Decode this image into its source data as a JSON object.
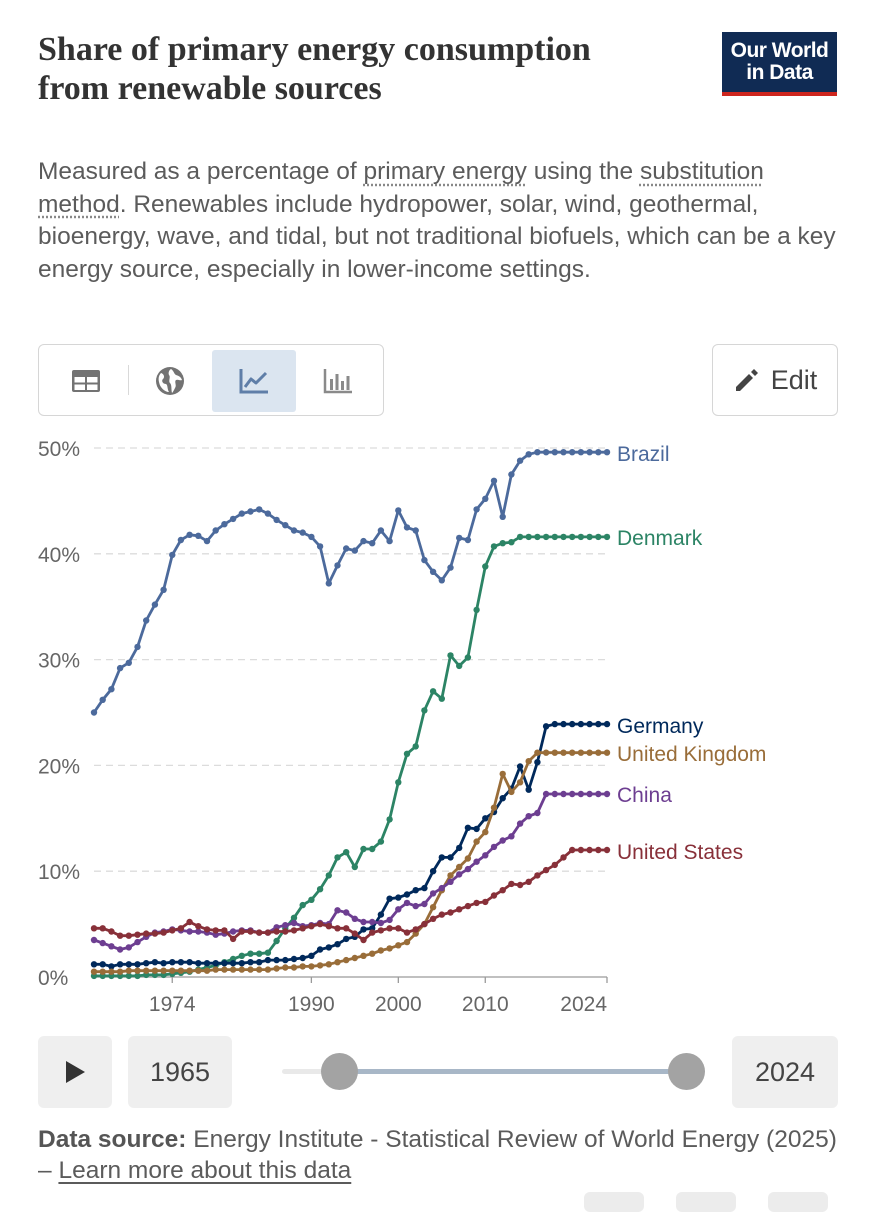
{
  "header": {
    "title": "Share of primary energy consumption from renewable sources",
    "logo_line1": "Our World",
    "logo_line2": "in Data",
    "subtitle_pre": "Measured as a percentage of ",
    "subtitle_link1": "primary energy",
    "subtitle_mid": " using the ",
    "subtitle_link2": "substitution method",
    "subtitle_post": ". Renewables include hydropower, solar, wind, geothermal, bioenergy, wave, and tidal, but not traditional biofuels, which can be a key energy source, especially in lower-income settings."
  },
  "toolbar": {
    "tabs": [
      "table",
      "map",
      "line chart",
      "bar chart"
    ],
    "active_tab": "line chart",
    "edit_label": "Edit"
  },
  "timeline": {
    "start_year": "1965",
    "end_year": "2024"
  },
  "footer": {
    "source_label": "Data source:",
    "source_text": " Energy Institute - Statistical Review of World Energy (2025) – ",
    "learn_more": "Learn more about this data"
  },
  "colors": {
    "Brazil": "#4c6a9c",
    "Denmark": "#2c8465",
    "Germany": "#00295b",
    "United Kingdom": "#996d39",
    "China": "#6d3e91",
    "United States": "#883039",
    "grid": "#dcdcdc",
    "axis": "#666666"
  },
  "chart_data": {
    "type": "line",
    "title": "Share of primary energy consumption from renewable sources",
    "xlim": [
      1965,
      2024
    ],
    "ylim": [
      0,
      50
    ],
    "yticks": [
      0,
      10,
      20,
      30,
      40,
      50
    ],
    "ytick_labels": [
      "0%",
      "10%",
      "20%",
      "30%",
      "40%",
      "50%"
    ],
    "xticks": [
      1974,
      1990,
      2000,
      2010,
      2024
    ],
    "xtick_labels": [
      "1974",
      "1990",
      "2000",
      "2010",
      "2024"
    ],
    "x": [
      1965,
      1966,
      1967,
      1968,
      1969,
      1970,
      1971,
      1972,
      1973,
      1974,
      1975,
      1976,
      1977,
      1978,
      1979,
      1980,
      1981,
      1982,
      1983,
      1984,
      1985,
      1986,
      1987,
      1988,
      1989,
      1990,
      1991,
      1992,
      1993,
      1994,
      1995,
      1996,
      1997,
      1998,
      1999,
      2000,
      2001,
      2002,
      2003,
      2004,
      2005,
      2006,
      2007,
      2008,
      2009,
      2010,
      2011,
      2012,
      2013,
      2014,
      2015,
      2016,
      2017,
      2018,
      2019,
      2020,
      2021,
      2022,
      2023,
      2024
    ],
    "series": [
      {
        "name": "Brazil",
        "values": [
          25.0,
          26.2,
          27.2,
          29.2,
          29.7,
          31.2,
          33.7,
          35.2,
          36.6,
          39.9,
          41.3,
          41.8,
          41.7,
          41.2,
          42.2,
          42.8,
          43.3,
          43.8,
          44.0,
          44.2,
          43.8,
          43.2,
          42.7,
          42.2,
          42.0,
          41.6,
          40.7,
          37.2,
          38.9,
          40.5,
          40.3,
          41.2,
          41.0,
          42.2,
          41.2,
          44.1,
          42.5,
          42.2,
          39.4,
          38.3,
          37.5,
          38.7,
          41.5,
          41.3,
          44.2,
          45.2,
          46.9,
          43.5,
          47.5,
          48.8,
          49.4,
          49.6,
          49.6,
          49.6,
          49.6,
          49.6,
          49.6,
          49.6,
          49.6,
          49.6
        ]
      },
      {
        "name": "Denmark",
        "values": [
          0.1,
          0.1,
          0.1,
          0.1,
          0.1,
          0.1,
          0.2,
          0.2,
          0.2,
          0.3,
          0.4,
          0.5,
          0.7,
          0.9,
          1.1,
          1.4,
          1.7,
          2.0,
          2.2,
          2.2,
          2.3,
          3.4,
          4.6,
          5.6,
          6.8,
          7.3,
          8.3,
          9.6,
          11.3,
          11.8,
          10.4,
          12.1,
          12.1,
          12.8,
          14.9,
          18.4,
          21.1,
          21.8,
          25.2,
          27.0,
          26.3,
          30.4,
          29.4,
          30.2,
          34.7,
          38.8,
          40.7,
          41.0,
          41.1,
          41.6,
          41.6,
          41.6,
          41.6,
          41.6,
          41.6,
          41.6,
          41.6,
          41.6,
          41.6,
          41.6
        ]
      },
      {
        "name": "Germany",
        "values": [
          1.2,
          1.2,
          1.0,
          1.2,
          1.2,
          1.2,
          1.3,
          1.4,
          1.3,
          1.4,
          1.4,
          1.4,
          1.3,
          1.3,
          1.3,
          1.3,
          1.3,
          1.3,
          1.4,
          1.4,
          1.6,
          1.6,
          1.6,
          1.7,
          1.8,
          2.0,
          2.6,
          2.8,
          3.1,
          3.6,
          3.8,
          4.5,
          4.6,
          5.9,
          7.4,
          7.5,
          7.8,
          8.2,
          8.4,
          10.0,
          11.3,
          11.3,
          12.2,
          14.1,
          14.0,
          15.0,
          15.6,
          16.9,
          17.8,
          19.9,
          17.7,
          20.3,
          23.7,
          23.9,
          23.9,
          23.9,
          23.9,
          23.9,
          23.9,
          23.9
        ]
      },
      {
        "name": "United Kingdom",
        "values": [
          0.5,
          0.5,
          0.5,
          0.5,
          0.6,
          0.6,
          0.6,
          0.6,
          0.6,
          0.6,
          0.6,
          0.6,
          0.6,
          0.6,
          0.7,
          0.7,
          0.7,
          0.7,
          0.7,
          0.7,
          0.7,
          0.8,
          0.9,
          0.9,
          1.0,
          1.0,
          1.1,
          1.2,
          1.4,
          1.6,
          1.8,
          2.0,
          2.2,
          2.5,
          2.7,
          3.0,
          3.3,
          4.1,
          5.0,
          6.6,
          8.2,
          9.6,
          10.4,
          11.2,
          12.8,
          13.7,
          16.0,
          19.2,
          17.5,
          18.4,
          20.4,
          21.2,
          21.2,
          21.2,
          21.2,
          21.2,
          21.2,
          21.2,
          21.2,
          21.2
        ]
      },
      {
        "name": "China",
        "values": [
          3.5,
          3.2,
          2.9,
          2.6,
          2.8,
          3.3,
          3.8,
          4.2,
          4.3,
          4.5,
          4.4,
          4.3,
          4.3,
          4.2,
          4.0,
          4.1,
          4.3,
          4.4,
          4.4,
          4.2,
          4.2,
          4.7,
          4.9,
          5.1,
          4.8,
          4.9,
          5.1,
          5.0,
          6.3,
          6.1,
          5.5,
          5.2,
          5.2,
          5.1,
          5.4,
          6.4,
          7.0,
          6.7,
          6.9,
          7.9,
          8.4,
          9.0,
          9.7,
          10.2,
          10.9,
          11.5,
          12.3,
          12.9,
          13.3,
          14.5,
          15.2,
          15.5,
          17.3,
          17.3,
          17.3,
          17.3,
          17.3,
          17.3,
          17.3,
          17.3
        ]
      },
      {
        "name": "United States",
        "values": [
          4.6,
          4.6,
          4.3,
          3.9,
          3.9,
          4.0,
          4.1,
          4.1,
          4.2,
          4.4,
          4.6,
          5.2,
          4.8,
          4.5,
          4.4,
          4.4,
          3.6,
          4.3,
          4.3,
          4.2,
          4.2,
          4.3,
          4.3,
          4.4,
          4.6,
          4.8,
          5.0,
          4.8,
          4.6,
          4.6,
          4.1,
          3.5,
          4.2,
          4.4,
          4.6,
          4.6,
          4.2,
          4.5,
          5.0,
          5.5,
          5.9,
          6.1,
          6.4,
          6.7,
          7.0,
          7.1,
          7.7,
          8.2,
          8.8,
          8.7,
          9.0,
          9.6,
          10.1,
          10.6,
          11.3,
          12.0,
          12.0,
          12.0,
          12.0,
          12.0
        ]
      }
    ]
  }
}
